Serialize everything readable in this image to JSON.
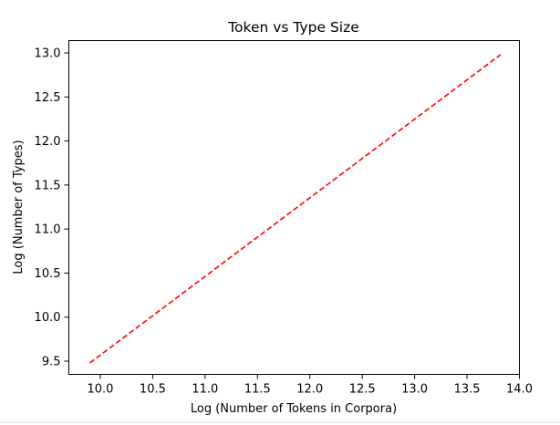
{
  "chart_data": {
    "type": "line",
    "title": "Token vs Type Size",
    "xlabel": "Log (Number of Tokens in Corpora)",
    "ylabel": "Log (Number of Types)",
    "xlim": [
      9.7,
      14.0
    ],
    "ylim": [
      9.35,
      13.14
    ],
    "x_ticks": [
      10.0,
      10.5,
      11.0,
      11.5,
      12.0,
      12.5,
      13.0,
      13.5,
      14.0
    ],
    "x_tick_labels": [
      "10.0",
      "10.5",
      "11.0",
      "11.5",
      "12.0",
      "12.5",
      "13.0",
      "13.5",
      "14.0"
    ],
    "y_ticks": [
      9.5,
      10.0,
      10.5,
      11.0,
      11.5,
      12.0,
      12.5,
      13.0
    ],
    "y_tick_labels": [
      "9.5",
      "10.0",
      "10.5",
      "11.0",
      "11.5",
      "12.0",
      "12.5",
      "13.0"
    ],
    "grid": false,
    "series": [
      {
        "color": "#ff0000",
        "line_style": "dashed",
        "x": [
          9.9,
          13.82
        ],
        "y": [
          9.48,
          12.98
        ]
      }
    ]
  }
}
